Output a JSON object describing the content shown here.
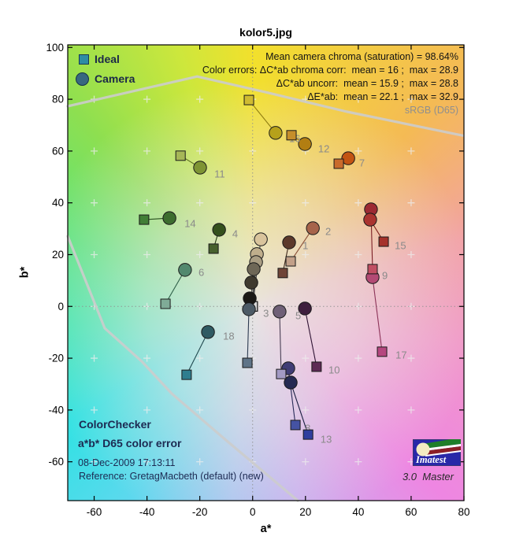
{
  "title": "kolor5.jpg",
  "axes": {
    "xlabel": "a*",
    "ylabel": "b*",
    "xlim": [
      -70,
      80
    ],
    "ylim": [
      -75,
      101
    ],
    "x_ticks": [
      -60,
      -40,
      -20,
      0,
      20,
      40,
      60,
      80
    ],
    "y_ticks": [
      -60,
      -40,
      -20,
      0,
      20,
      40,
      60,
      80,
      100
    ],
    "grid_a": [
      -60,
      -40,
      -20,
      0,
      20,
      40,
      60
    ],
    "grid_b": [
      -60,
      -40,
      -20,
      0,
      20,
      40,
      60,
      80
    ]
  },
  "legend": [
    {
      "label": "Ideal",
      "marker": "square",
      "color": "#2e8ca4"
    },
    {
      "label": "Camera",
      "marker": "circle",
      "color": "#38687f"
    }
  ],
  "annotations": {
    "lines": [
      "Mean camera chroma (saturation) = 98.64%",
      "Color errors: ΔC*ab chroma corr:  mean = 16 ;  max = 28.9",
      "ΔC*ab uncorr:  mean = 15.9 ;  max = 28.8",
      "ΔE*ab:  mean = 22.1 ;  max = 32.9"
    ],
    "srgb_label": "sRGB (D65)"
  },
  "info_block": {
    "line1": "ColorChecker",
    "line2": "a*b* D65 color error",
    "date": "08-Dec-2009 17:13:11",
    "reference": "Reference: GretagMacbeth (default) (new)"
  },
  "logo": {
    "text": "Imatest",
    "version_line": "3.0  Master"
  },
  "chart_data": {
    "type": "scatter",
    "title": "kolor5.jpg",
    "xlabel": "a*",
    "ylabel": "b*",
    "xlim": [
      -70,
      80
    ],
    "ylim": [
      -75,
      101
    ],
    "stats": {
      "mean_camera_chroma_pct": 98.64,
      "dC_chroma_corr": {
        "mean": 16,
        "max": 28.9
      },
      "dC_uncorr": {
        "mean": 15.9,
        "max": 28.8
      },
      "dE": {
        "mean": 22.1,
        "max": 32.9
      }
    },
    "gamut_boundary": {
      "upper": [
        [
          -70,
          77.3
        ],
        [
          -21,
          88.8
        ],
        [
          5.8,
          82.5
        ],
        [
          35.6,
          75.2
        ],
        [
          79.5,
          66.0
        ]
      ],
      "lower": [
        [
          -70,
          27.1
        ],
        [
          -56,
          -8.4
        ],
        [
          -42,
          -21.2
        ],
        [
          -30.6,
          -33.7
        ],
        [
          -9.8,
          -51.9
        ],
        [
          17.1,
          -75
        ]
      ]
    },
    "patches": [
      {
        "num": 1,
        "ideal": [
          11.4,
          12.9
        ],
        "camera": [
          13.8,
          24.7
        ],
        "label_pos": [
          18.9,
          23.5
        ],
        "ideal_color": "#6f4437",
        "camera_color": "#5c392b",
        "line_color": "#40291c"
      },
      {
        "num": 2,
        "ideal": [
          14.4,
          17.4
        ],
        "camera": [
          22.8,
          30.2
        ],
        "label_pos": [
          27.5,
          29.0
        ],
        "ideal_color": "#c2a089",
        "camera_color": "#a6644a",
        "line_color": "#8a5038"
      },
      {
        "num": 3,
        "ideal": [
          -2.0,
          -21.8
        ],
        "camera": [
          -1.4,
          -1.1
        ],
        "label_pos": [
          4.0,
          -2.6
        ],
        "ideal_color": "#5f7488",
        "camera_color": "#4d5b66",
        "line_color": "#2c3a50"
      },
      {
        "num": 4,
        "ideal": [
          -14.8,
          22.3
        ],
        "camera": [
          -12.7,
          29.6
        ],
        "label_pos": [
          -7.7,
          28.1
        ],
        "ideal_color": "#47612d",
        "camera_color": "#35511d",
        "line_color": "#243c10"
      },
      {
        "num": 5,
        "ideal": [
          10.8,
          -26.1
        ],
        "camera": [
          10.2,
          -2.0
        ],
        "label_pos": [
          16.2,
          -3.6
        ],
        "ideal_color": "#a39ac4",
        "camera_color": "#6f6077",
        "line_color": "#4a3f55"
      },
      {
        "num": 6,
        "ideal": [
          -33.0,
          1.0
        ],
        "camera": [
          -25.6,
          14.1
        ],
        "label_pos": [
          -20.5,
          13.2
        ],
        "ideal_color": "#7fab97",
        "camera_color": "#52886e",
        "line_color": "#2f6049"
      },
      {
        "num": 7,
        "ideal": [
          32.6,
          55.1
        ],
        "camera": [
          36.2,
          57.2
        ],
        "label_pos": [
          40.3,
          55.4
        ],
        "ideal_color": "#c96b2c",
        "camera_color": "#c25413",
        "line_color": "#8f3c0c"
      },
      {
        "num": 8,
        "ideal": [
          16.2,
          -45.8
        ],
        "camera": [
          13.5,
          -23.9
        ],
        "label_pos": [
          19.8,
          -47.0
        ],
        "ideal_color": "#4553a3",
        "camera_color": "#403d75",
        "line_color": "#272a58"
      },
      {
        "num": 9,
        "ideal": [
          45.4,
          14.4
        ],
        "camera": [
          44.8,
          37.5
        ],
        "label_pos": [
          49.0,
          12.0
        ],
        "ideal_color": "#c14f63",
        "camera_color": "#9c2a33",
        "line_color": "#7c1f26"
      },
      {
        "num": 10,
        "ideal": [
          24.2,
          -23.3
        ],
        "camera": [
          19.8,
          -0.8
        ],
        "label_pos": [
          28.7,
          -24.5
        ],
        "ideal_color": "#5e2a55",
        "camera_color": "#3f1f3e",
        "line_color": "#301434"
      },
      {
        "num": 11,
        "ideal": [
          -27.3,
          58.2
        ],
        "camera": [
          -19.9,
          53.6
        ],
        "label_pos": [
          -14.5,
          51.2
        ],
        "ideal_color": "#a6b757",
        "camera_color": "#7e9434",
        "line_color": "#5c7020"
      },
      {
        "num": 12,
        "ideal": [
          14.7,
          66.1
        ],
        "camera": [
          19.8,
          62.7
        ],
        "label_pos": [
          24.8,
          60.9
        ],
        "ideal_color": "#c68e2a",
        "camera_color": "#b27e12",
        "line_color": "#8a6008"
      },
      {
        "num": 13,
        "ideal": [
          21.0,
          -49.5
        ],
        "camera": [
          14.4,
          -29.4
        ],
        "label_pos": [
          25.7,
          -51.3
        ],
        "ideal_color": "#2f3e9e",
        "camera_color": "#252a52",
        "line_color": "#191e40"
      },
      {
        "num": 14,
        "ideal": [
          -41.1,
          33.5
        ],
        "camera": [
          -31.5,
          34.1
        ],
        "label_pos": [
          -25.8,
          32.0
        ],
        "ideal_color": "#417e36",
        "camera_color": "#3d6d2f",
        "line_color": "#28501e"
      },
      {
        "num": 15,
        "ideal": [
          49.6,
          25.0
        ],
        "camera": [
          44.5,
          33.5
        ],
        "label_pos": [
          53.8,
          23.5
        ],
        "ideal_color": "#a5322b",
        "camera_color": "#aa3430",
        "line_color": "#7d201c"
      },
      {
        "num": 16,
        "ideal": [
          -1.4,
          79.7
        ],
        "camera": [
          8.7,
          67.0
        ],
        "label_pos": [
          13.8,
          64.8
        ],
        "ideal_color": "#cfbb31",
        "camera_color": "#b6a11b",
        "line_color": "#8f7d10"
      },
      {
        "num": 17,
        "ideal": [
          49.0,
          -17.5
        ],
        "camera": [
          45.4,
          11.3
        ],
        "label_pos": [
          54.1,
          -18.8
        ],
        "ideal_color": "#b5477f",
        "camera_color": "#b34a74",
        "line_color": "#8c3358"
      },
      {
        "num": 18,
        "ideal": [
          -25.0,
          -26.4
        ],
        "camera": [
          -16.9,
          -9.9
        ],
        "label_pos": [
          -11.2,
          -11.5
        ],
        "ideal_color": "#2f7e8f",
        "camera_color": "#2f5b63",
        "line_color": "#1d454c"
      }
    ],
    "grayscale_patches": {
      "ideal": [
        0,
        0
      ],
      "ideal_color": "#d9d9d9",
      "line_color": "#4a4a4a",
      "camera": [
        {
          "ab": [
            3.1,
            25.9
          ],
          "color": "#d9c49c"
        },
        {
          "ab": [
            1.6,
            20.2
          ],
          "color": "#bfae8c"
        },
        {
          "ab": [
            1.3,
            17.1
          ],
          "color": "#a99d83"
        },
        {
          "ab": [
            0.4,
            14.4
          ],
          "color": "#6e6757"
        },
        {
          "ab": [
            -0.5,
            9.2
          ],
          "color": "#3f3a2f"
        },
        {
          "ab": [
            -1.1,
            3.1
          ],
          "color": "#1b1916"
        }
      ]
    }
  },
  "style_colors": {
    "gamut_line": "#cccccc",
    "grid_mark": "#ececec",
    "zero_line": "#909090",
    "point_label": "#8a8a8a",
    "marker_edge": "#1a1a1a"
  }
}
